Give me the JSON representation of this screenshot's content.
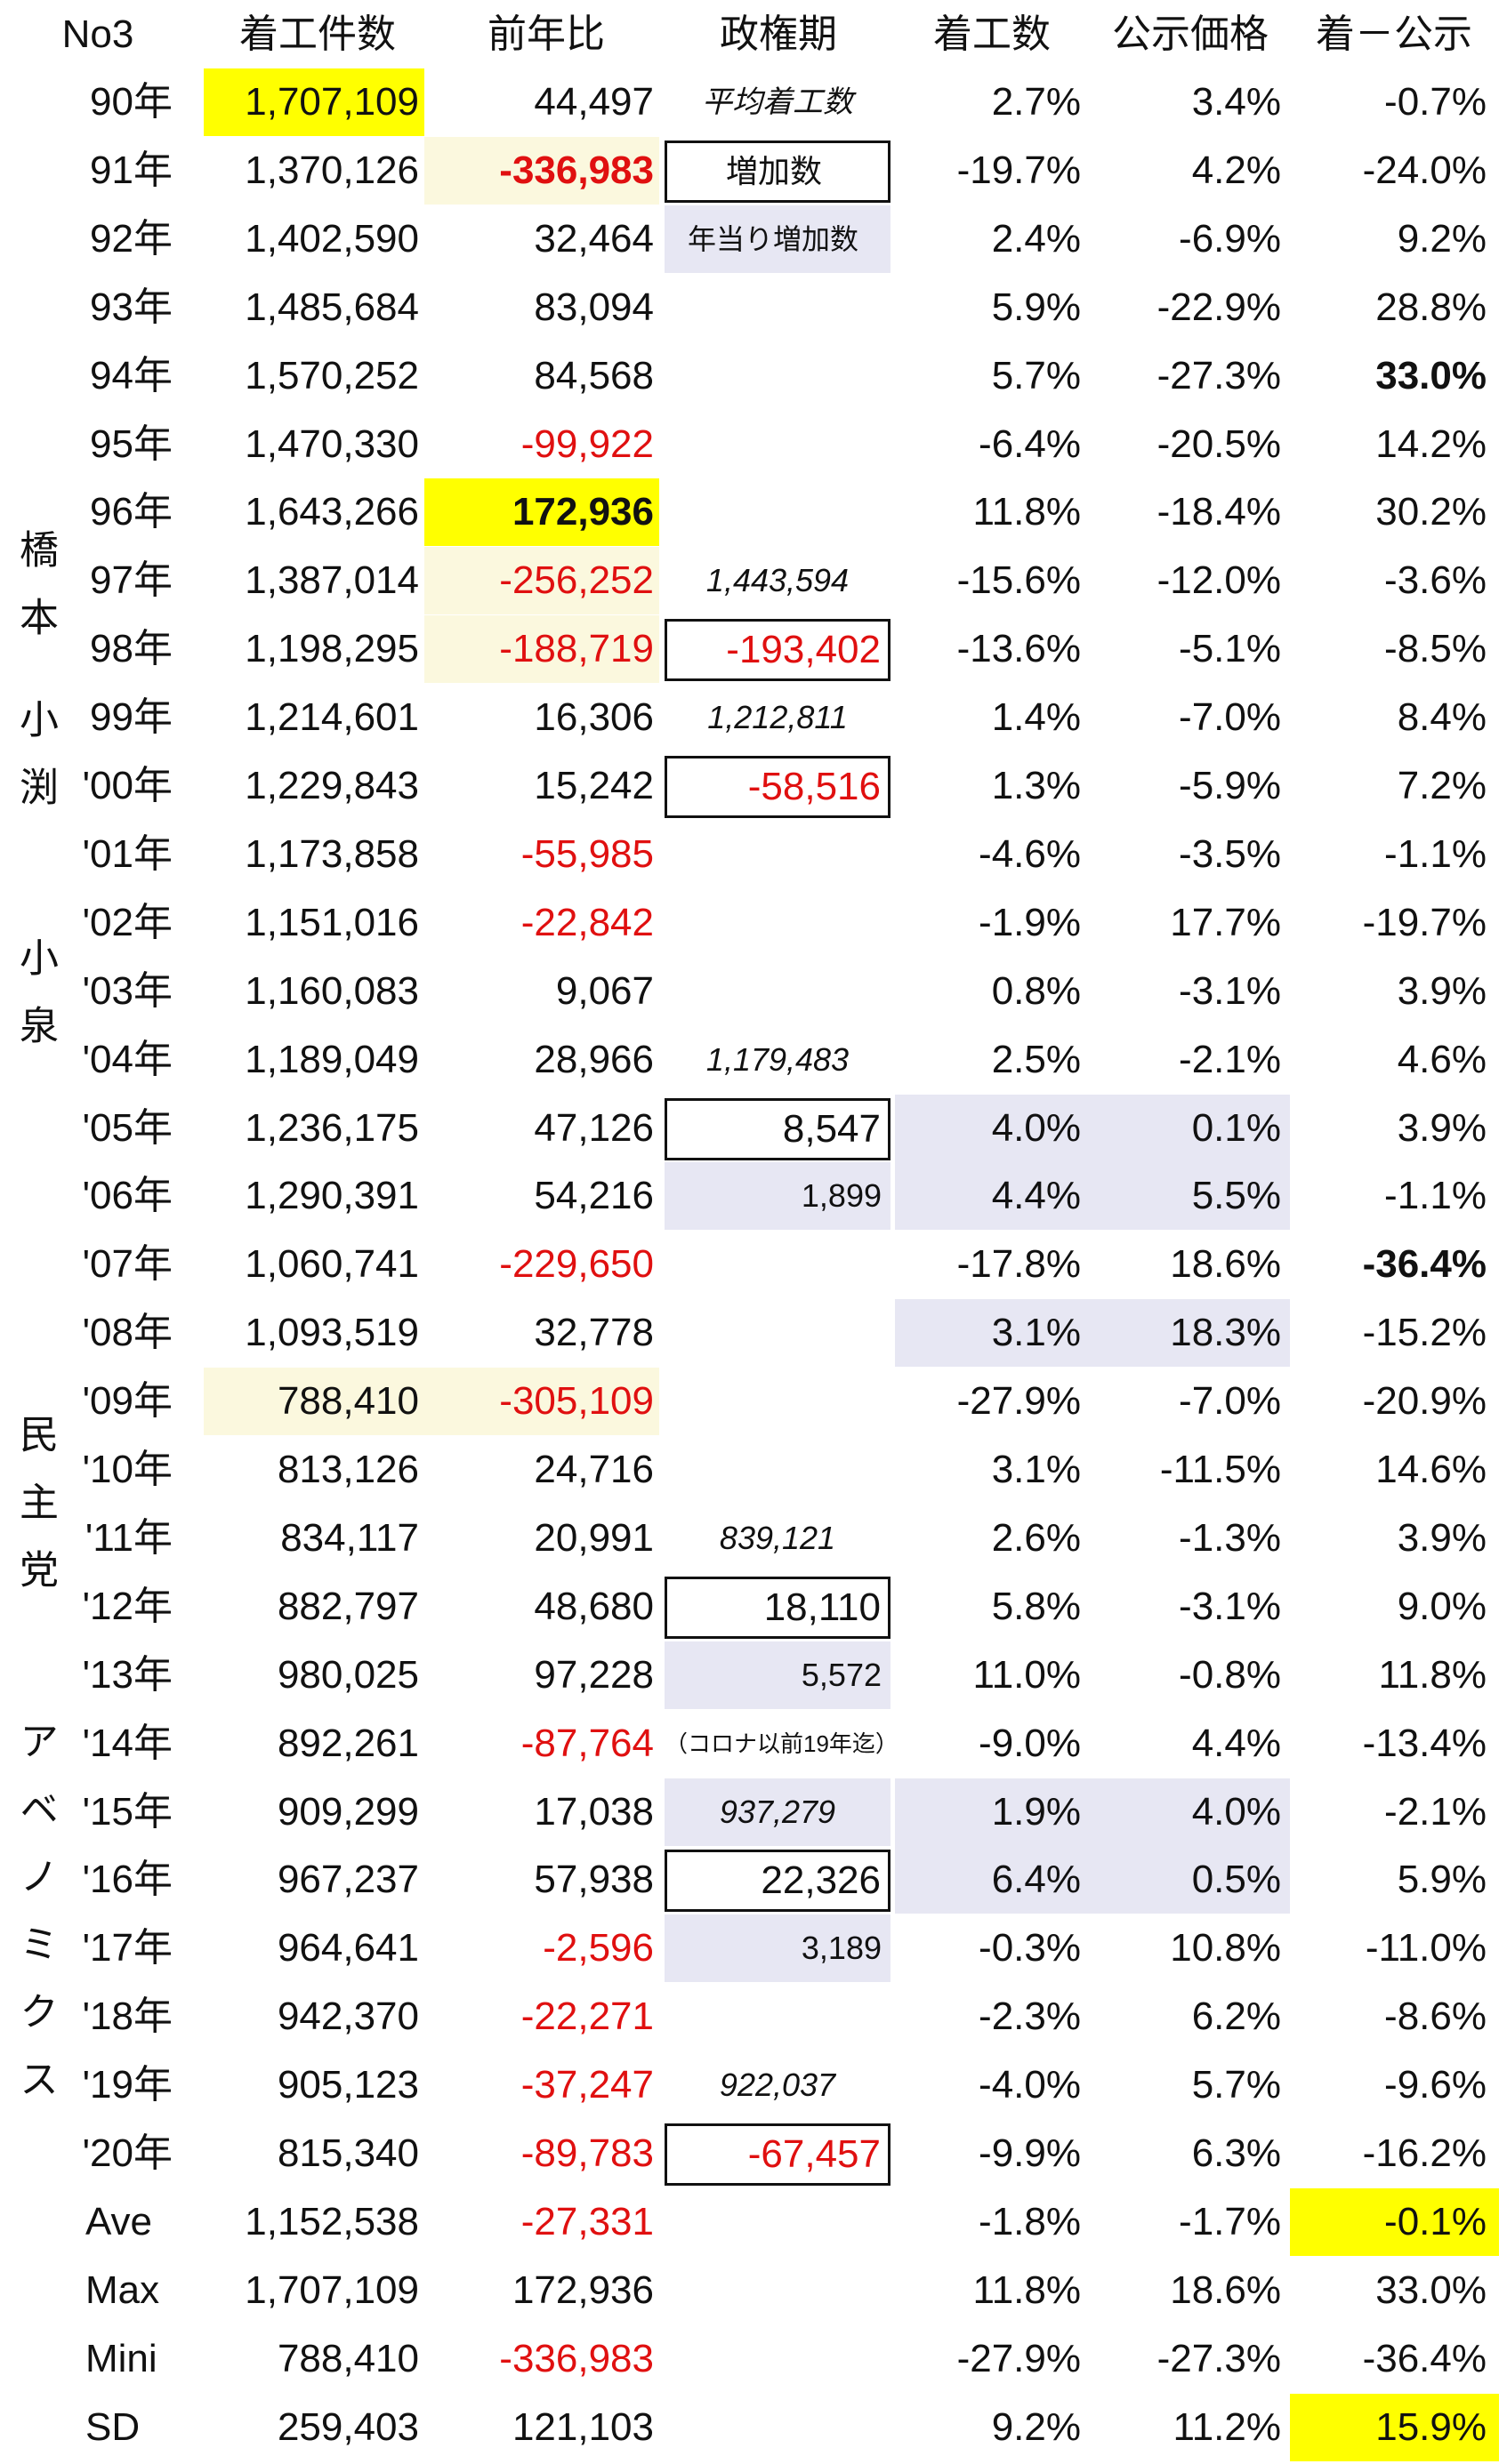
{
  "header": [
    "No3",
    "着工件数",
    "前年比",
    "政権期",
    "着工数",
    "公示価格",
    "着－公示"
  ],
  "side_labels": [
    "橋本",
    "小渕",
    "小泉",
    "民主党",
    "アベノミクス"
  ],
  "rows": [
    [
      "90年",
      "1,707,109",
      "44,497",
      "平均着工数",
      "2.7%",
      "3.4%",
      "-0.7%"
    ],
    [
      "91年",
      "1,370,126",
      "-336,983",
      "増加数",
      "-19.7%",
      "4.2%",
      "-24.0%"
    ],
    [
      "92年",
      "1,402,590",
      "32,464",
      "年当り増加数",
      "2.4%",
      "-6.9%",
      "9.2%"
    ],
    [
      "93年",
      "1,485,684",
      "83,094",
      null,
      "5.9%",
      "-22.9%",
      "28.8%"
    ],
    [
      "94年",
      "1,570,252",
      "84,568",
      null,
      "5.7%",
      "-27.3%",
      "33.0%"
    ],
    [
      "95年",
      "1,470,330",
      "-99,922",
      null,
      "-6.4%",
      "-20.5%",
      "14.2%"
    ],
    [
      "96年",
      "1,643,266",
      "172,936",
      null,
      "11.8%",
      "-18.4%",
      "30.2%"
    ],
    [
      "97年",
      "1,387,014",
      "-256,252",
      "1,443,594",
      "-15.6%",
      "-12.0%",
      "-3.6%"
    ],
    [
      "98年",
      "1,198,295",
      "-188,719",
      "-193,402",
      "-13.6%",
      "-5.1%",
      "-8.5%"
    ],
    [
      "99年",
      "1,214,601",
      "16,306",
      "1,212,811",
      "1.4%",
      "-7.0%",
      "8.4%"
    ],
    [
      "'00年",
      "1,229,843",
      "15,242",
      "-58,516",
      "1.3%",
      "-5.9%",
      "7.2%"
    ],
    [
      "'01年",
      "1,173,858",
      "-55,985",
      null,
      "-4.6%",
      "-3.5%",
      "-1.1%"
    ],
    [
      "'02年",
      "1,151,016",
      "-22,842",
      null,
      "-1.9%",
      "17.7%",
      "-19.7%"
    ],
    [
      "'03年",
      "1,160,083",
      "9,067",
      null,
      "0.8%",
      "-3.1%",
      "3.9%"
    ],
    [
      "'04年",
      "1,189,049",
      "28,966",
      "1,179,483",
      "2.5%",
      "-2.1%",
      "4.6%"
    ],
    [
      "'05年",
      "1,236,175",
      "47,126",
      "8,547",
      "4.0%",
      "0.1%",
      "3.9%"
    ],
    [
      "'06年",
      "1,290,391",
      "54,216",
      "1,899",
      "4.4%",
      "5.5%",
      "-1.1%"
    ],
    [
      "'07年",
      "1,060,741",
      "-229,650",
      null,
      "-17.8%",
      "18.6%",
      "-36.4%"
    ],
    [
      "'08年",
      "1,093,519",
      "32,778",
      null,
      "3.1%",
      "18.3%",
      "-15.2%"
    ],
    [
      "'09年",
      "788,410",
      "-305,109",
      null,
      "-27.9%",
      "-7.0%",
      "-20.9%"
    ],
    [
      "'10年",
      "813,126",
      "24,716",
      null,
      "3.1%",
      "-11.5%",
      "14.6%"
    ],
    [
      "'11年",
      "834,117",
      "20,991",
      "839,121",
      "2.6%",
      "-1.3%",
      "3.9%"
    ],
    [
      "'12年",
      "882,797",
      "48,680",
      "18,110",
      "5.8%",
      "-3.1%",
      "9.0%"
    ],
    [
      "'13年",
      "980,025",
      "97,228",
      "5,572",
      "11.0%",
      "-0.8%",
      "11.8%"
    ],
    [
      "'14年",
      "892,261",
      "-87,764",
      "（コロナ以前19年迄）",
      "-9.0%",
      "4.4%",
      "-13.4%"
    ],
    [
      "'15年",
      "909,299",
      "17,038",
      "937,279",
      "1.9%",
      "4.0%",
      "-2.1%"
    ],
    [
      "'16年",
      "967,237",
      "57,938",
      "22,326",
      "6.4%",
      "0.5%",
      "5.9%"
    ],
    [
      "'17年",
      "964,641",
      "-2,596",
      "3,189",
      "-0.3%",
      "10.8%",
      "-11.0%"
    ],
    [
      "'18年",
      "942,370",
      "-22,271",
      null,
      "-2.3%",
      "6.2%",
      "-8.6%"
    ],
    [
      "'19年",
      "905,123",
      "-37,247",
      "922,037",
      "-4.0%",
      "5.7%",
      "-9.6%"
    ],
    [
      "'20年",
      "815,340",
      "-89,783",
      "-67,457",
      "-9.9%",
      "6.3%",
      "-16.2%"
    ],
    [
      "Ave",
      "1,152,538",
      "-27,331",
      null,
      "-1.8%",
      "-1.7%",
      "-0.1%"
    ],
    [
      "Max",
      "1,707,109",
      "172,936",
      null,
      "11.8%",
      "18.6%",
      "33.0%"
    ],
    [
      "Mini",
      "788,410",
      "-336,983",
      null,
      "-27.9%",
      "-27.3%",
      "-36.4%"
    ],
    [
      "SD",
      "259,403",
      "121,103",
      null,
      "9.2%",
      "11.2%",
      "15.9%"
    ]
  ]
}
